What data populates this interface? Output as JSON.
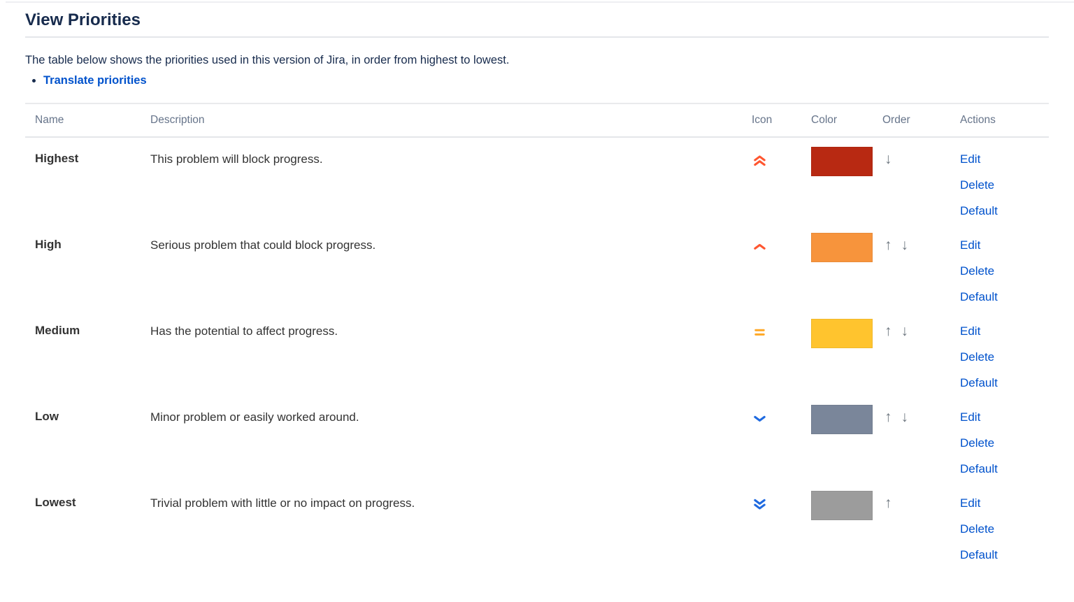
{
  "page": {
    "title": "View Priorities",
    "intro": "The table below shows the priorities used in this version of Jira, in order from highest to lowest.",
    "links": {
      "translate": "Translate priorities"
    }
  },
  "table": {
    "headers": [
      "Name",
      "Description",
      "Icon",
      "Color",
      "Order",
      "Actions"
    ],
    "action_labels": [
      "Edit",
      "Delete",
      "Default"
    ],
    "order_glyphs": {
      "up": "↑",
      "down": "↓"
    },
    "priorities": [
      {
        "name": "Highest",
        "description": "This problem will block progress.",
        "icon": "double-chevron-up-icon",
        "icon_color": "#FF5630",
        "color": "#B82912",
        "can_move_up": false,
        "can_move_down": true
      },
      {
        "name": "High",
        "description": "Serious problem that could block progress.",
        "icon": "chevron-up-icon",
        "icon_color": "#FF5630",
        "color": "#F7943C",
        "can_move_up": true,
        "can_move_down": true
      },
      {
        "name": "Medium",
        "description": "Has the potential to affect progress.",
        "icon": "equals-icon",
        "icon_color": "#FFA826",
        "color": "#FFC42E",
        "can_move_up": true,
        "can_move_down": true
      },
      {
        "name": "Low",
        "description": "Minor problem or easily worked around.",
        "icon": "chevron-down-icon",
        "icon_color": "#1F6AE0",
        "color": "#7A869A",
        "can_move_up": true,
        "can_move_down": true
      },
      {
        "name": "Lowest",
        "description": "Trivial problem with little or no impact on progress.",
        "icon": "double-chevron-down-icon",
        "icon_color": "#1F6AE0",
        "color": "#9C9C9C",
        "can_move_up": true,
        "can_move_down": false
      }
    ]
  },
  "colors": {
    "link_blue": "#0052CC",
    "heading_text": "#172B4D",
    "column_header_text": "#66748A",
    "order_arrow": "#6E7780"
  }
}
